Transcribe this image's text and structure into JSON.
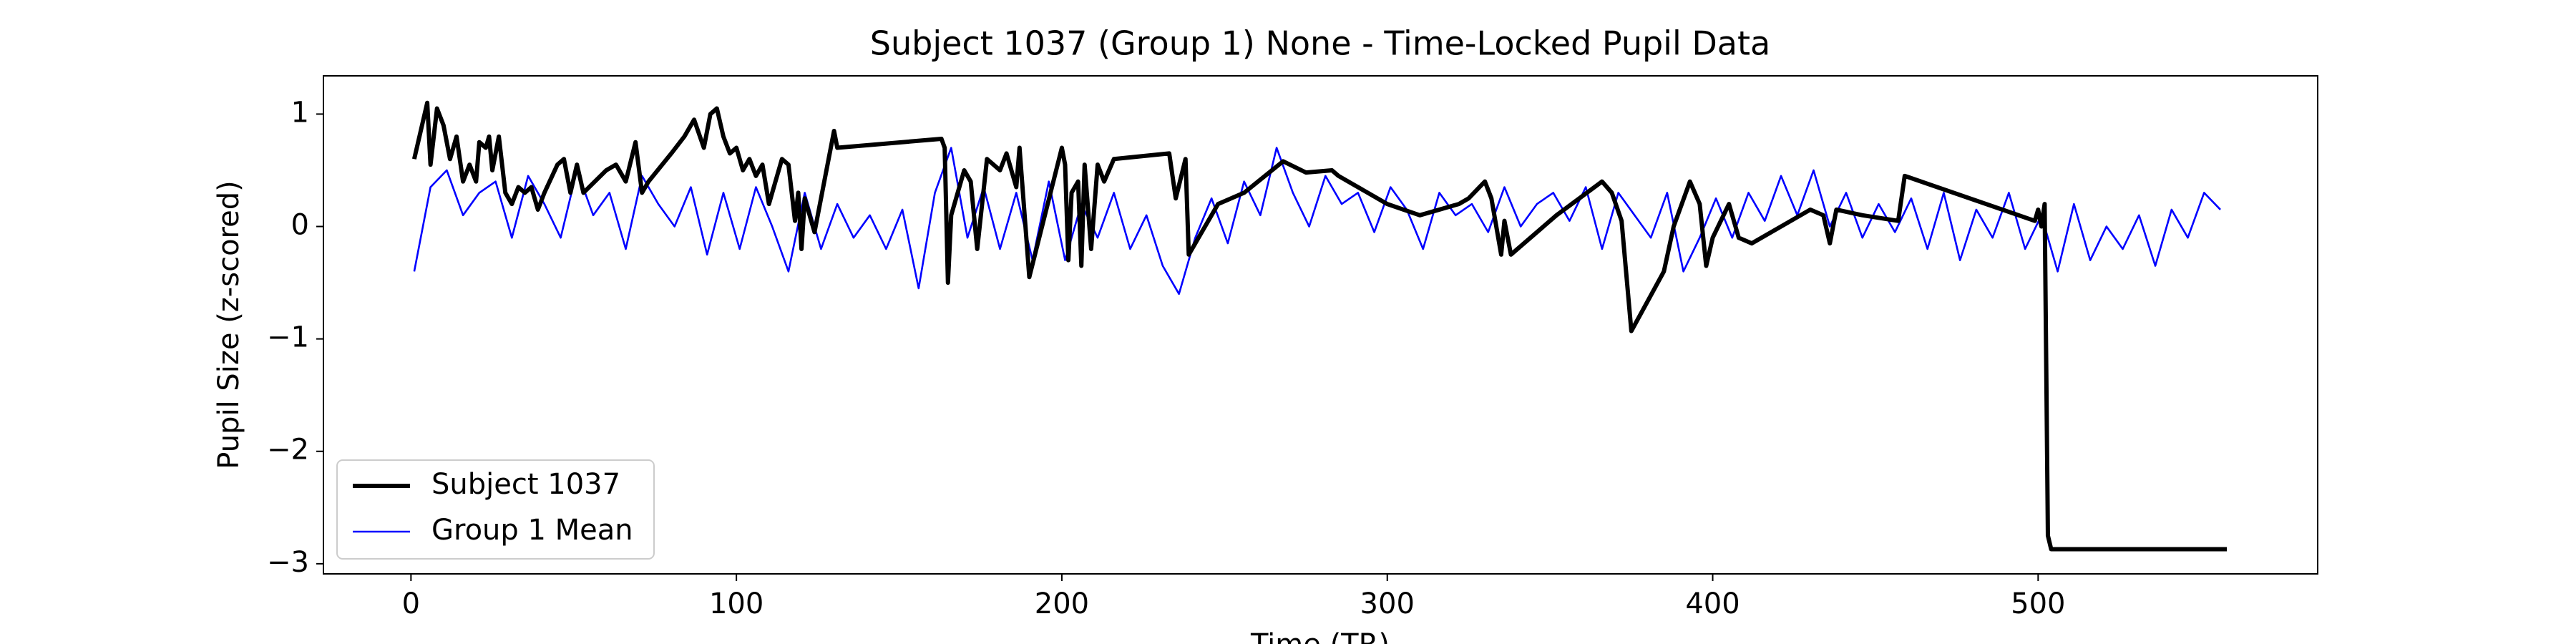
{
  "chart_data": {
    "type": "line",
    "title": "Subject 1037 (Group 1) None - Time-Locked Pupil Data",
    "x_label": "Time (TR)",
    "y_label": "Pupil Size (z-scored)",
    "xlim": [
      -26.9,
      585.9
    ],
    "ylim": [
      -3.09,
      1.34
    ],
    "xticks": [
      0,
      100,
      200,
      300,
      400,
      500
    ],
    "yticks": [
      -3,
      -2,
      -1,
      0,
      1
    ],
    "grid": false,
    "legend": "lower left",
    "series": [
      {
        "name": "Subject 1037",
        "color": "#000000",
        "width": 6,
        "x": [
          1,
          5,
          6,
          8,
          10,
          12,
          14,
          16,
          18,
          20,
          21,
          23,
          24,
          25,
          27,
          29,
          31,
          33,
          35,
          37,
          39,
          41,
          45,
          47,
          49,
          51,
          53,
          60,
          63,
          66,
          69,
          71,
          73,
          80,
          84,
          87,
          90,
          92,
          94,
          96,
          98,
          100,
          102,
          104,
          106,
          108,
          110,
          112,
          114,
          116,
          118,
          119,
          120,
          121,
          124,
          127,
          130,
          131,
          163,
          164,
          165,
          166,
          170,
          172,
          174,
          177,
          181,
          183,
          186,
          187,
          190,
          200,
          201,
          202,
          203,
          205,
          206,
          207,
          209,
          211,
          213,
          216,
          233,
          235,
          238,
          239,
          248,
          252,
          256,
          268,
          275,
          283,
          285,
          300,
          310,
          322,
          325,
          330,
          332,
          335,
          336,
          338,
          352,
          366,
          369,
          372,
          375,
          385,
          388,
          393,
          396,
          398,
          400,
          405,
          408,
          412,
          430,
          434,
          436,
          438,
          446,
          457,
          459,
          499,
          500,
          501,
          502,
          503,
          504,
          558
        ],
        "values": [
          0.6,
          1.1,
          0.55,
          1.05,
          0.9,
          0.6,
          0.8,
          0.4,
          0.55,
          0.4,
          0.75,
          0.7,
          0.8,
          0.5,
          0.8,
          0.3,
          0.2,
          0.35,
          0.3,
          0.35,
          0.15,
          0.3,
          0.55,
          0.6,
          0.3,
          0.55,
          0.3,
          0.5,
          0.55,
          0.4,
          0.75,
          0.3,
          0.4,
          0.65,
          0.8,
          0.95,
          0.7,
          1.0,
          1.05,
          0.8,
          0.65,
          0.7,
          0.5,
          0.6,
          0.45,
          0.55,
          0.2,
          0.4,
          0.6,
          0.55,
          0.05,
          0.3,
          -0.2,
          0.25,
          -0.05,
          0.4,
          0.85,
          0.7,
          0.78,
          0.7,
          -0.5,
          0.1,
          0.5,
          0.4,
          -0.2,
          0.6,
          0.5,
          0.65,
          0.35,
          0.7,
          -0.45,
          0.7,
          0.55,
          -0.3,
          0.3,
          0.4,
          -0.35,
          0.55,
          -0.2,
          0.55,
          0.4,
          0.6,
          0.65,
          0.25,
          0.6,
          -0.25,
          0.2,
          0.25,
          0.3,
          0.58,
          0.48,
          0.5,
          0.45,
          0.2,
          0.1,
          0.2,
          0.25,
          0.4,
          0.25,
          -0.25,
          0.05,
          -0.25,
          0.1,
          0.4,
          0.3,
          0.05,
          -0.93,
          -0.4,
          0.0,
          0.4,
          0.2,
          -0.35,
          -0.1,
          0.2,
          -0.1,
          -0.15,
          0.15,
          0.1,
          -0.15,
          0.15,
          0.1,
          0.05,
          0.45,
          0.05,
          0.15,
          0.0,
          0.2,
          -2.75,
          -2.87,
          -2.87
        ]
      },
      {
        "name": "Group 1 Mean",
        "color": "#0000ff",
        "width": 2.6,
        "x": [
          1,
          6,
          11,
          16,
          21,
          26,
          31,
          36,
          41,
          46,
          51,
          56,
          61,
          66,
          71,
          76,
          81,
          86,
          91,
          96,
          101,
          106,
          111,
          116,
          121,
          126,
          131,
          136,
          141,
          146,
          151,
          156,
          161,
          166,
          171,
          176,
          181,
          186,
          191,
          196,
          201,
          206,
          211,
          216,
          221,
          226,
          231,
          236,
          241,
          246,
          251,
          256,
          261,
          266,
          271,
          276,
          281,
          286,
          291,
          296,
          301,
          306,
          311,
          316,
          321,
          326,
          331,
          336,
          341,
          346,
          351,
          356,
          361,
          366,
          371,
          376,
          381,
          386,
          391,
          396,
          401,
          406,
          411,
          416,
          421,
          426,
          431,
          436,
          441,
          446,
          451,
          456,
          461,
          466,
          471,
          476,
          481,
          486,
          491,
          496,
          501,
          506,
          511,
          516,
          521,
          526,
          531,
          536,
          541,
          546,
          551,
          556
        ],
        "values": [
          -0.4,
          0.35,
          0.5,
          0.1,
          0.3,
          0.4,
          -0.1,
          0.45,
          0.2,
          -0.1,
          0.5,
          0.1,
          0.3,
          -0.2,
          0.45,
          0.2,
          0.0,
          0.35,
          -0.25,
          0.3,
          -0.2,
          0.35,
          0.0,
          -0.4,
          0.3,
          -0.2,
          0.2,
          -0.1,
          0.1,
          -0.2,
          0.15,
          -0.55,
          0.3,
          0.7,
          -0.1,
          0.35,
          -0.2,
          0.3,
          -0.3,
          0.4,
          -0.3,
          0.2,
          -0.1,
          0.3,
          -0.2,
          0.1,
          -0.35,
          -0.6,
          -0.1,
          0.25,
          -0.15,
          0.4,
          0.1,
          0.7,
          0.3,
          0.0,
          0.45,
          0.2,
          0.3,
          -0.05,
          0.35,
          0.15,
          -0.2,
          0.3,
          0.1,
          0.2,
          -0.05,
          0.35,
          0.0,
          0.2,
          0.3,
          0.05,
          0.35,
          -0.2,
          0.3,
          0.1,
          -0.1,
          0.3,
          -0.4,
          -0.1,
          0.25,
          -0.1,
          0.3,
          0.05,
          0.45,
          0.1,
          0.5,
          0.0,
          0.3,
          -0.1,
          0.2,
          -0.05,
          0.25,
          -0.2,
          0.3,
          -0.3,
          0.15,
          -0.1,
          0.3,
          -0.2,
          0.1,
          -0.4,
          0.2,
          -0.3,
          0.0,
          -0.2,
          0.1,
          -0.35,
          0.15,
          -0.1,
          0.3,
          0.15
        ]
      }
    ]
  }
}
